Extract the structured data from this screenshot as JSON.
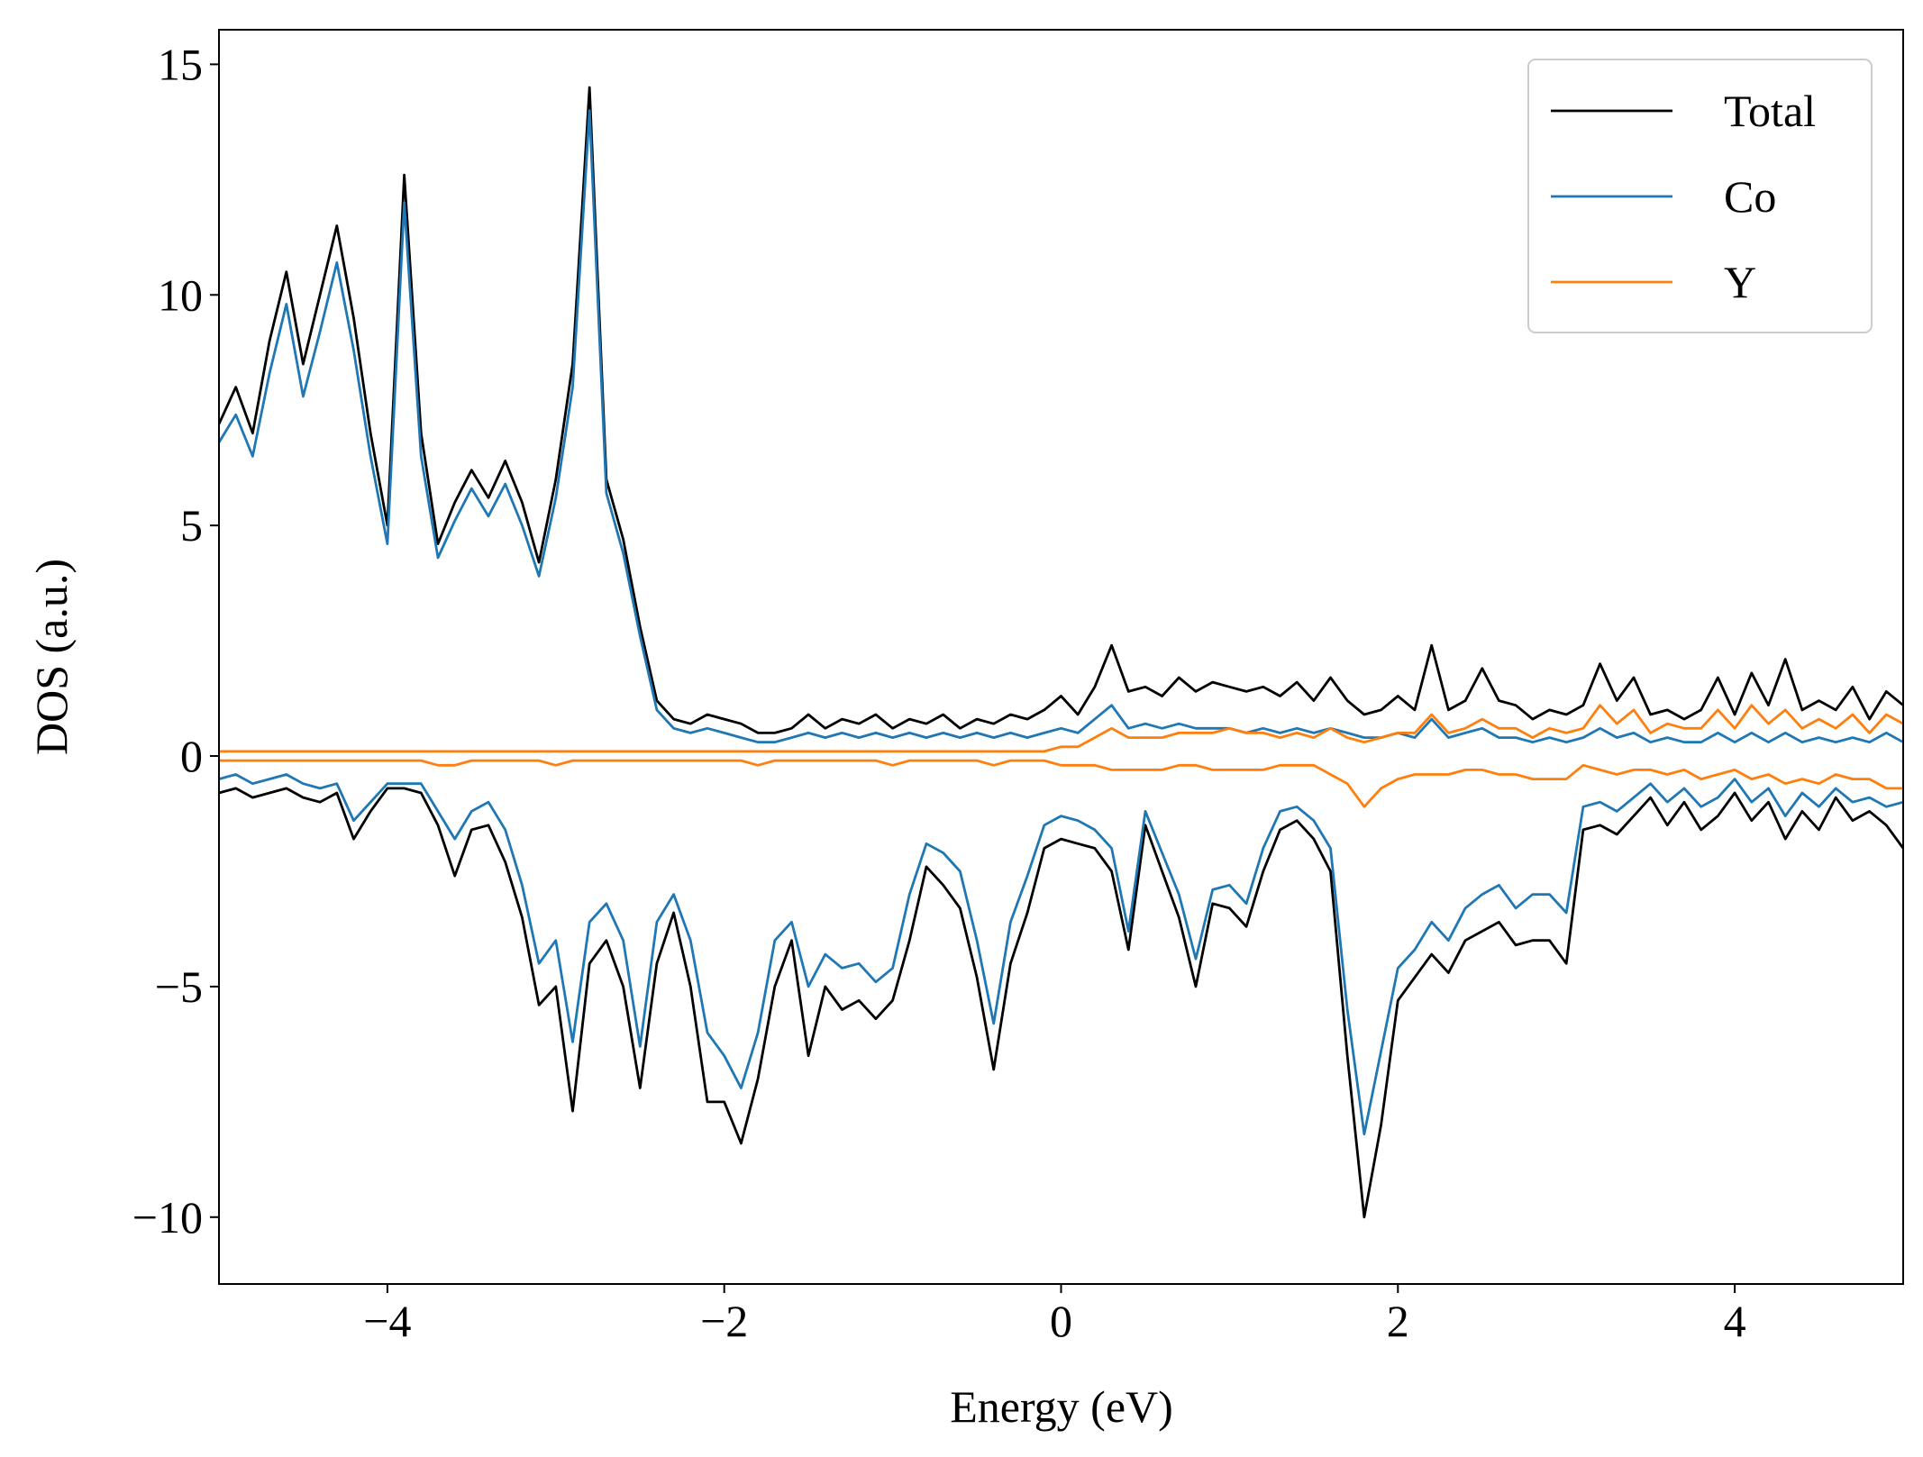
{
  "chart_data": {
    "type": "line",
    "xlabel": "Energy (eV)",
    "ylabel": "DOS (a.u.)",
    "xlim": [
      -5,
      5
    ],
    "ylim": [
      -11.45,
      15.75
    ],
    "xticks": [
      {
        "value": -4,
        "label": "−4"
      },
      {
        "value": -2,
        "label": "−2"
      },
      0,
      2,
      4
    ],
    "yticks": [
      {
        "value": -10,
        "label": "−10"
      },
      {
        "value": -5,
        "label": "−5"
      },
      0,
      5,
      10,
      15
    ],
    "legend": "upper right",
    "grid": false,
    "x": [
      -5.0,
      -4.9,
      -4.8,
      -4.7,
      -4.6,
      -4.5,
      -4.4,
      -4.3,
      -4.2,
      -4.1,
      -4.0,
      -3.9,
      -3.8,
      -3.7,
      -3.6,
      -3.5,
      -3.4,
      -3.3,
      -3.2,
      -3.1,
      -3.0,
      -2.9,
      -2.8,
      -2.7,
      -2.6,
      -2.5,
      -2.4,
      -2.3,
      -2.2,
      -2.1,
      -2.0,
      -1.9,
      -1.8,
      -1.7,
      -1.6,
      -1.5,
      -1.4,
      -1.3,
      -1.2,
      -1.1,
      -1.0,
      -0.9,
      -0.8,
      -0.7,
      -0.6,
      -0.5,
      -0.4,
      -0.3,
      -0.2,
      -0.1,
      0.0,
      0.1,
      0.2,
      0.3,
      0.4,
      0.5,
      0.6,
      0.7,
      0.8,
      0.9,
      1.0,
      1.1,
      1.2,
      1.3,
      1.4,
      1.5,
      1.6,
      1.7,
      1.8,
      1.9,
      2.0,
      2.1,
      2.2,
      2.3,
      2.4,
      2.5,
      2.6,
      2.7,
      2.8,
      2.9,
      3.0,
      3.1,
      3.2,
      3.3,
      3.4,
      3.5,
      3.6,
      3.7,
      3.8,
      3.9,
      4.0,
      4.1,
      4.2,
      4.3,
      4.4,
      4.5,
      4.6,
      4.7,
      4.8,
      4.9,
      5.0
    ],
    "series": [
      {
        "name": "Total",
        "color": "#000000",
        "values": [
          7.2,
          8.0,
          7.0,
          9.0,
          10.5,
          8.5,
          10.0,
          11.5,
          9.5,
          7.0,
          5.0,
          12.6,
          7.0,
          4.6,
          5.5,
          6.2,
          5.6,
          6.4,
          5.5,
          4.2,
          6.0,
          8.5,
          14.5,
          6.0,
          4.7,
          2.8,
          1.2,
          0.8,
          0.7,
          0.9,
          0.8,
          0.7,
          0.5,
          0.5,
          0.6,
          0.9,
          0.6,
          0.8,
          0.7,
          0.9,
          0.6,
          0.8,
          0.7,
          0.9,
          0.6,
          0.8,
          0.7,
          0.9,
          0.8,
          1.0,
          1.3,
          0.9,
          1.5,
          2.4,
          1.4,
          1.5,
          1.3,
          1.7,
          1.4,
          1.6,
          1.5,
          1.4,
          1.5,
          1.3,
          1.6,
          1.2,
          1.7,
          1.2,
          0.9,
          1.0,
          1.3,
          1.0,
          2.4,
          1.0,
          1.2,
          1.9,
          1.2,
          1.1,
          0.8,
          1.0,
          0.9,
          1.1,
          2.0,
          1.2,
          1.7,
          0.9,
          1.0,
          0.8,
          1.0,
          1.7,
          0.9,
          1.8,
          1.1,
          2.1,
          1.0,
          1.2,
          1.0,
          1.5,
          0.8,
          1.4,
          1.1
        ],
        "values_down": [
          -0.8,
          -0.7,
          -0.9,
          -0.8,
          -0.7,
          -0.9,
          -1.0,
          -0.8,
          -1.8,
          -1.2,
          -0.7,
          -0.7,
          -0.8,
          -1.5,
          -2.6,
          -1.6,
          -1.5,
          -2.3,
          -3.5,
          -5.4,
          -5.0,
          -7.7,
          -4.5,
          -4.0,
          -5.0,
          -7.2,
          -4.5,
          -3.4,
          -5.0,
          -7.5,
          -7.5,
          -8.4,
          -7.0,
          -5.0,
          -4.0,
          -6.5,
          -5.0,
          -5.5,
          -5.3,
          -5.7,
          -5.3,
          -4.0,
          -2.4,
          -2.8,
          -3.3,
          -4.8,
          -6.8,
          -4.5,
          -3.4,
          -2.0,
          -1.8,
          -1.9,
          -2.0,
          -2.5,
          -4.2,
          -1.5,
          -2.5,
          -3.5,
          -5.0,
          -3.2,
          -3.3,
          -3.7,
          -2.5,
          -1.6,
          -1.4,
          -1.8,
          -2.5,
          -6.5,
          -10.0,
          -8.0,
          -5.3,
          -4.8,
          -4.3,
          -4.7,
          -4.0,
          -3.8,
          -3.6,
          -4.1,
          -4.0,
          -4.0,
          -4.5,
          -1.6,
          -1.5,
          -1.7,
          -1.3,
          -0.9,
          -1.5,
          -1.0,
          -1.6,
          -1.3,
          -0.8,
          -1.4,
          -1.0,
          -1.8,
          -1.2,
          -1.6,
          -0.9,
          -1.4,
          -1.2,
          -1.5,
          -2.0
        ]
      },
      {
        "name": "Co",
        "color": "#1f77b4",
        "values": [
          6.8,
          7.4,
          6.5,
          8.3,
          9.8,
          7.8,
          9.2,
          10.7,
          8.8,
          6.5,
          4.6,
          12.0,
          6.5,
          4.3,
          5.1,
          5.8,
          5.2,
          5.9,
          5.0,
          3.9,
          5.6,
          8.0,
          14.0,
          5.7,
          4.4,
          2.6,
          1.0,
          0.6,
          0.5,
          0.6,
          0.5,
          0.4,
          0.3,
          0.3,
          0.4,
          0.5,
          0.4,
          0.5,
          0.4,
          0.5,
          0.4,
          0.5,
          0.4,
          0.5,
          0.4,
          0.5,
          0.4,
          0.5,
          0.4,
          0.5,
          0.6,
          0.5,
          0.8,
          1.1,
          0.6,
          0.7,
          0.6,
          0.7,
          0.6,
          0.6,
          0.6,
          0.5,
          0.6,
          0.5,
          0.6,
          0.5,
          0.6,
          0.5,
          0.4,
          0.4,
          0.5,
          0.4,
          0.8,
          0.4,
          0.5,
          0.6,
          0.4,
          0.4,
          0.3,
          0.4,
          0.3,
          0.4,
          0.6,
          0.4,
          0.5,
          0.3,
          0.4,
          0.3,
          0.3,
          0.5,
          0.3,
          0.5,
          0.3,
          0.5,
          0.3,
          0.4,
          0.3,
          0.4,
          0.3,
          0.5,
          0.3
        ],
        "values_down": [
          -0.5,
          -0.4,
          -0.6,
          -0.5,
          -0.4,
          -0.6,
          -0.7,
          -0.6,
          -1.4,
          -1.0,
          -0.6,
          -0.6,
          -0.6,
          -1.2,
          -1.8,
          -1.2,
          -1.0,
          -1.6,
          -2.8,
          -4.5,
          -4.0,
          -6.2,
          -3.6,
          -3.2,
          -4.0,
          -6.3,
          -3.6,
          -3.0,
          -4.0,
          -6.0,
          -6.5,
          -7.2,
          -6.0,
          -4.0,
          -3.6,
          -5.0,
          -4.3,
          -4.6,
          -4.5,
          -4.9,
          -4.6,
          -3.0,
          -1.9,
          -2.1,
          -2.5,
          -4.0,
          -5.8,
          -3.6,
          -2.6,
          -1.5,
          -1.3,
          -1.4,
          -1.6,
          -2.0,
          -3.8,
          -1.2,
          -2.1,
          -3.0,
          -4.4,
          -2.9,
          -2.8,
          -3.2,
          -2.0,
          -1.2,
          -1.1,
          -1.4,
          -2.0,
          -5.5,
          -8.2,
          -6.4,
          -4.6,
          -4.2,
          -3.6,
          -4.0,
          -3.3,
          -3.0,
          -2.8,
          -3.3,
          -3.0,
          -3.0,
          -3.4,
          -1.1,
          -1.0,
          -1.2,
          -0.9,
          -0.6,
          -1.0,
          -0.7,
          -1.1,
          -0.9,
          -0.5,
          -1.0,
          -0.7,
          -1.3,
          -0.8,
          -1.1,
          -0.7,
          -1.0,
          -0.9,
          -1.1,
          -1.0
        ]
      },
      {
        "name": "Y",
        "color": "#ff7f0e",
        "values": [
          0.1,
          0.1,
          0.1,
          0.1,
          0.1,
          0.1,
          0.1,
          0.1,
          0.1,
          0.1,
          0.1,
          0.1,
          0.1,
          0.1,
          0.1,
          0.1,
          0.1,
          0.1,
          0.1,
          0.1,
          0.1,
          0.1,
          0.1,
          0.1,
          0.1,
          0.1,
          0.1,
          0.1,
          0.1,
          0.1,
          0.1,
          0.1,
          0.1,
          0.1,
          0.1,
          0.1,
          0.1,
          0.1,
          0.1,
          0.1,
          0.1,
          0.1,
          0.1,
          0.1,
          0.1,
          0.1,
          0.1,
          0.1,
          0.1,
          0.1,
          0.2,
          0.2,
          0.4,
          0.6,
          0.4,
          0.4,
          0.4,
          0.5,
          0.5,
          0.5,
          0.6,
          0.5,
          0.5,
          0.4,
          0.5,
          0.4,
          0.6,
          0.4,
          0.3,
          0.4,
          0.5,
          0.5,
          0.9,
          0.5,
          0.6,
          0.8,
          0.6,
          0.6,
          0.4,
          0.6,
          0.5,
          0.6,
          1.1,
          0.7,
          1.0,
          0.5,
          0.7,
          0.6,
          0.6,
          1.0,
          0.6,
          1.1,
          0.7,
          1.0,
          0.6,
          0.8,
          0.6,
          0.9,
          0.5,
          0.9,
          0.7
        ],
        "values_down": [
          -0.1,
          -0.1,
          -0.1,
          -0.1,
          -0.1,
          -0.1,
          -0.1,
          -0.1,
          -0.1,
          -0.1,
          -0.1,
          -0.1,
          -0.1,
          -0.2,
          -0.2,
          -0.1,
          -0.1,
          -0.1,
          -0.1,
          -0.1,
          -0.2,
          -0.1,
          -0.1,
          -0.1,
          -0.1,
          -0.1,
          -0.1,
          -0.1,
          -0.1,
          -0.1,
          -0.1,
          -0.1,
          -0.2,
          -0.1,
          -0.1,
          -0.1,
          -0.1,
          -0.1,
          -0.1,
          -0.1,
          -0.2,
          -0.1,
          -0.1,
          -0.1,
          -0.1,
          -0.1,
          -0.2,
          -0.1,
          -0.1,
          -0.1,
          -0.2,
          -0.2,
          -0.2,
          -0.3,
          -0.3,
          -0.3,
          -0.3,
          -0.2,
          -0.2,
          -0.3,
          -0.3,
          -0.3,
          -0.3,
          -0.2,
          -0.2,
          -0.2,
          -0.4,
          -0.6,
          -1.1,
          -0.7,
          -0.5,
          -0.4,
          -0.4,
          -0.4,
          -0.3,
          -0.3,
          -0.4,
          -0.4,
          -0.5,
          -0.5,
          -0.5,
          -0.2,
          -0.3,
          -0.4,
          -0.3,
          -0.3,
          -0.4,
          -0.3,
          -0.5,
          -0.4,
          -0.3,
          -0.5,
          -0.4,
          -0.6,
          -0.5,
          -0.6,
          -0.4,
          -0.5,
          -0.5,
          -0.7,
          -0.7
        ]
      }
    ]
  }
}
